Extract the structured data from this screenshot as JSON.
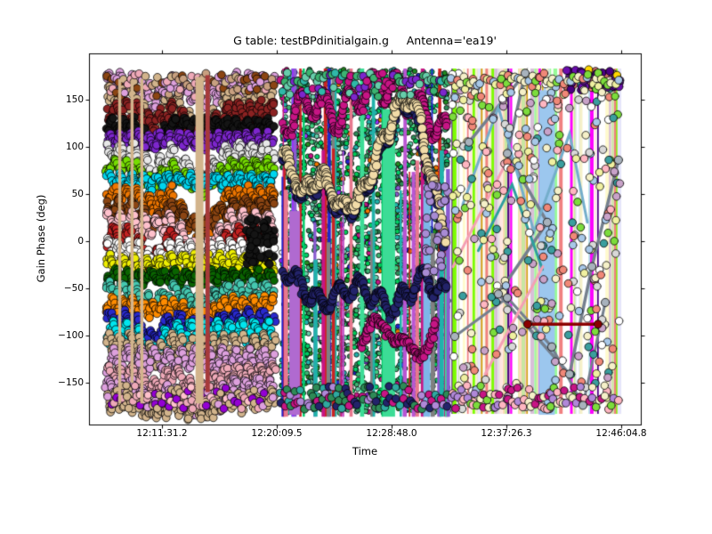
{
  "figure": {
    "title": "G table: testBPdinitialgain.g     Antenna='ea19'",
    "x_label": "Time",
    "y_label": "Gain Phase (deg)"
  },
  "axes": {
    "x_tick_labels": [
      "12:11:31.2",
      "12:20:09.5",
      "12:28:48.0",
      "12:37:26.3",
      "12:46:04.8"
    ],
    "y_tick_labels": [
      "150",
      "100",
      "50",
      "0",
      "−50",
      "−100",
      "−150"
    ]
  },
  "chart_data": {
    "type": "scatter",
    "title": "G table: testBPdinitialgain.g     Antenna='ea19'",
    "xlabel": "Time",
    "ylabel": "Gain Phase (deg)",
    "x_ticks": [
      "12:11:31.2",
      "12:20:09.5",
      "12:28:48.0",
      "12:37:26.3",
      "12:46:04.8"
    ],
    "y_ticks": [
      150,
      100,
      50,
      0,
      -50,
      -100,
      -150
    ],
    "ylim": [
      -199,
      199
    ],
    "grid": false,
    "legend": false,
    "marker": "circle-black-edge",
    "note": "Extremely dense multi-colour gain-phase solutions vs time for antenna ea19; three time blocks separated by narrow gaps; phase wraps at +/-180 deg producing vertical connector stripes.",
    "seed": 1337,
    "segments": [
      {
        "name": "block-1",
        "time_range": [
          "12:07:22",
          "12:20:05"
        ],
        "style": "stacked-wavy-bands",
        "n_bands": 24,
        "band_top_deg": 168,
        "band_bottom_deg": -168,
        "wiggle_deg": 7,
        "palette": [
          "#DDA0DD",
          "#D2B48C",
          "#8B2222",
          "#151515",
          "#7D26CD",
          "#E8E8E8",
          "#76DD00",
          "#00D5EE",
          "#EE7600",
          "#8B4513",
          "#FFC1CC",
          "#C22222",
          "#FFFFFF",
          "#EEEE00",
          "#0A6400",
          "#45C8B0",
          "#FF8C00",
          "#2929CC",
          "#00E5EE",
          "#D2B48C",
          "#DDA0DD",
          "#EEA9B8"
        ],
        "dips": [
          {
            "center": 0.27,
            "width": 0.11,
            "max_depth_deg": 40
          },
          {
            "center": 0.55,
            "width": 0.17,
            "max_depth_deg": 48
          }
        ],
        "stripes": [
          {
            "frac": 0.074,
            "w": 3.5,
            "color": "#D2B48C",
            "top": 172,
            "bot": -172
          },
          {
            "frac": 0.147,
            "w": 3.5,
            "color": "#D2B48C",
            "top": 170,
            "bot": -150
          },
          {
            "frac": 0.205,
            "w": 3.5,
            "color": "#D2B48C",
            "top": 172,
            "bot": -172
          },
          {
            "frac": 0.547,
            "w": 9.0,
            "color": "#D2B48C",
            "top": 174,
            "bot": -172
          },
          {
            "frac": 0.595,
            "w": 5.0,
            "color": "#A63A3A",
            "top": 176,
            "bot": -160
          }
        ],
        "edge_top_palette": [
          "#DDA0DD",
          "#D2B48C",
          "#C8A080",
          "#8B4513",
          "#EEA9B8"
        ],
        "edge_bottom_palette": [
          "#DDA0DD",
          "#EEA9B8",
          "#D2B48C",
          "#9400D3",
          "#FFC1CC"
        ]
      },
      {
        "name": "block-2",
        "time_range": [
          "12:20:29",
          "12:33:03"
        ],
        "style": "green-speckle-stripes-and-bands",
        "speckle": {
          "count": 2400,
          "r": 2.7,
          "palette": [
            "#2E8B57",
            "#3CB371",
            "#00C957",
            "#20B2AA",
            "#66CDAA",
            "#228B22",
            "#43CD80",
            "#00CD66"
          ],
          "accent_palette": [
            "#C71585",
            "#9B30FF",
            "#2222CC",
            "#EE7600",
            "#F5F5F5",
            "#8A5AD1"
          ],
          "accent_ratio": 0.12
        },
        "stripes": {
          "count": 46,
          "palette": [
            "#9B30FF",
            "#BA55D3",
            "#2222CC",
            "#CC2222",
            "#C71585",
            "#20B2AA",
            "#3CDC96",
            "#E8788E",
            "#808080",
            "#5CACEE",
            "#00CD66",
            "#8A5AD1"
          ],
          "wide": [
            {
              "frac": 0.08,
              "w": 12,
              "color": "#B06AD0",
              "top": 32,
              "bot": -184
            },
            {
              "frac": 0.643,
              "w": 14,
              "color": "#3CDC96",
              "top": 140,
              "bot": -186
            },
            {
              "frac": 0.87,
              "w": 8,
              "color": "#7EB6E8",
              "top": 60,
              "bot": -186
            }
          ]
        },
        "bands": [
          {
            "name": "crimson-top",
            "color": "#C71585",
            "r": 4.4,
            "wiggle": 16,
            "cycles": 7,
            "path": [
              [
                0.01,
                124
              ],
              [
                0.18,
                152
              ],
              [
                0.34,
                133
              ],
              [
                0.5,
                161
              ],
              [
                0.66,
                166
              ],
              [
                0.82,
                142
              ],
              [
                0.99,
                114
              ]
            ]
          },
          {
            "name": "navy-low",
            "color": "#23236A",
            "r": 4.6,
            "wiggle": 10,
            "cycles": 8,
            "path": [
              [
                0.01,
                -27
              ],
              [
                0.23,
                -65
              ],
              [
                0.45,
                -46
              ],
              [
                0.66,
                -70
              ],
              [
                0.85,
                -37
              ],
              [
                0.99,
                -56
              ]
            ]
          },
          {
            "name": "crimson-low",
            "color": "#C71585",
            "r": 4.4,
            "wiggle": 12,
            "cycles": 5,
            "path": [
              [
                0.48,
                -103
              ],
              [
                0.63,
                -84
              ],
              [
                0.77,
                -122
              ],
              [
                0.93,
                -93
              ]
            ]
          },
          {
            "name": "cream-arch",
            "color": "#F2DCA8",
            "shadow": "#23236A",
            "r": 5,
            "wiggle": 9,
            "cycles": 9,
            "path": [
              [
                0.01,
                95
              ],
              [
                0.13,
                53
              ],
              [
                0.24,
                72
              ],
              [
                0.37,
                34
              ],
              [
                0.49,
                53
              ],
              [
                0.58,
                95
              ],
              [
                0.69,
                142
              ],
              [
                0.77,
                157
              ],
              [
                0.83,
                124
              ],
              [
                0.9,
                67
              ],
              [
                0.98,
                10
              ]
            ]
          }
        ],
        "lavender_cluster": {
          "color": "#A88BD4",
          "count": 30,
          "frac_range": [
            0.86,
            1.0
          ],
          "deg_range": [
            -35,
            70
          ]
        },
        "edge_top_palette": [
          "#2FB8A8",
          "#3CB371",
          "#C71585",
          "#7D26CD",
          "#66CDAA"
        ],
        "edge_bottom_palette": [
          "#C71585",
          "#2FA8A0",
          "#B088D8",
          "#2E8B57",
          "#23236A"
        ]
      },
      {
        "name": "block-3",
        "time_range": [
          "12:33:15",
          "12:45:56"
        ],
        "style": "pastel-stripes-open-scatter-connectors",
        "stripes": {
          "count": 78,
          "palette": [
            "#F5F0C8",
            "#FFFACD",
            "#F5F0C8",
            "#A8CBEA",
            "#7EB6E8",
            "#F4A8C0",
            "#F08080",
            "#D4A017",
            "#C8E8A0",
            "#B0E0E6",
            "#FFDAB9",
            "#E6E6FA",
            "#98FB98",
            "#FFE4E1",
            "#D8BFD8",
            "#F5F0C8",
            "#A8CBEA",
            "#FF00FF",
            "#4B0082",
            "#7CFC00"
          ],
          "wide": [
            {
              "frac": 0.565,
              "w": 18,
              "color": "#9CC7EE",
              "top": 160,
              "bot": -184
            }
          ]
        },
        "scatter": {
          "count": 330,
          "r": 4.3,
          "palette": [
            "#A8C8E8",
            "#F0F0A0",
            "#F08878",
            "#3A9E9E",
            "#7CDC3C",
            "#D8D8D8",
            "#F5F0C8",
            "#FFB6C1",
            "#FFFFFF",
            "#C8A2C8"
          ]
        },
        "lines": [
          {
            "color": "#75808E",
            "lw": 3.5,
            "nodes": true,
            "node_color": "#A8B2BC",
            "path": [
              [
                0.105,
                105
              ],
              [
                0.437,
                178
              ],
              [
                0.332,
                93
              ],
              [
                0.568,
                20
              ],
              [
                0.279,
                -56
              ],
              [
                0.7,
                -141
              ],
              [
                0.832,
                -27
              ],
              [
                0.989,
                86
              ]
            ]
          },
          {
            "color": "#75808E",
            "lw": 3.0,
            "nodes": true,
            "node_color": "#A8B2BC",
            "path": [
              [
                0.021,
                -101
              ],
              [
                0.332,
                -60
              ],
              [
                0.595,
                -112
              ],
              [
                0.779,
                -174
              ],
              [
                0.911,
                -65
              ]
            ]
          },
          {
            "color": "#74AECB",
            "lw": 3.0,
            "nodes": false,
            "path": [
              [
                0.068,
                39
              ],
              [
                0.279,
                142
              ],
              [
                0.489,
                10
              ],
              [
                0.7,
                114
              ],
              [
                0.805,
                20
              ]
            ]
          },
          {
            "color": "#2E9E9E",
            "lw": 3.0,
            "nodes": false,
            "path": [
              [
                0.16,
                -10
              ],
              [
                0.36,
                60
              ],
              [
                0.54,
                -30
              ]
            ]
          },
          {
            "color": "#F4A0B4",
            "lw": 3.0,
            "nodes": false,
            "path": [
              [
                0.011,
                -27
              ],
              [
                0.332,
                86
              ]
            ]
          },
          {
            "color": "#F4A0B4",
            "lw": 3.0,
            "nodes": false,
            "path": [
              [
                0.2,
                -141
              ],
              [
                0.542,
                -27
              ]
            ]
          }
        ],
        "top_cluster": {
          "frac_range": [
            0.68,
            1.0
          ],
          "count": 55,
          "palette": [
            "#4B0082",
            "#5D1A8B",
            "#6A0DAD",
            "#FFD700",
            "#CD6E6E"
          ]
        },
        "feature_line": {
          "color": "#8B0000",
          "lw": 3.5,
          "y_deg": -88,
          "frac_range": [
            0.452,
            0.868
          ],
          "time_range": [
            "12:39:00",
            "12:44:17"
          ],
          "label": "dark-red horizontal marker at -88 deg"
        },
        "edge_top_palette": [
          "#F5F0C8",
          "#F0F0A0",
          "#A8C8E8",
          "#F08878",
          "#7CDC3C"
        ],
        "edge_bottom_palette": [
          "#FFB6C1",
          "#C71585",
          "#7CDC3C",
          "#F5F0C8",
          "#B088D8"
        ]
      }
    ]
  }
}
